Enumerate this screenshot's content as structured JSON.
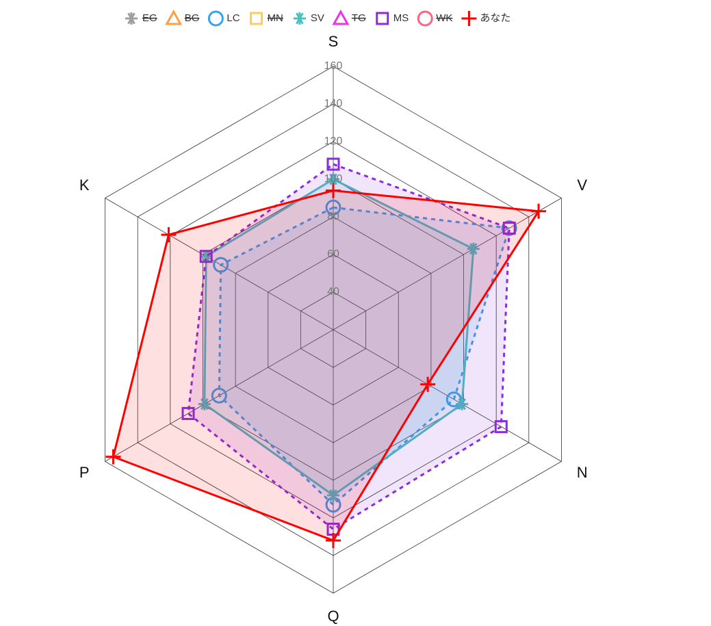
{
  "chart_data": {
    "type": "radar",
    "categories": [
      "S",
      "V",
      "N",
      "Q",
      "P",
      "K"
    ],
    "ylim": [
      20,
      160
    ],
    "yticks": [
      40,
      60,
      80,
      100,
      120,
      140,
      160
    ],
    "series": [
      {
        "name": "EG",
        "color": "#9e9e9e",
        "marker": "asterisk",
        "hidden": true
      },
      {
        "name": "BG",
        "color": "#ff9f40",
        "marker": "triangle",
        "hidden": true
      },
      {
        "name": "LC",
        "color": "#36a2eb",
        "marker": "circle",
        "dash": true,
        "values": [
          85,
          128,
          94,
          113,
          90,
          89
        ]
      },
      {
        "name": "MN",
        "color": "#ffcd56",
        "marker": "square",
        "hidden": true
      },
      {
        "name": "SV",
        "color": "#4bc0c0",
        "marker": "asterisk",
        "values": [
          100,
          106,
          99,
          108,
          99,
          98
        ]
      },
      {
        "name": "TG",
        "color": "#f032e6",
        "marker": "triangle",
        "hidden": true
      },
      {
        "name": "MS",
        "color": "#8a2be2",
        "marker": "square",
        "dash": true,
        "values": [
          108,
          128,
          123,
          126,
          109,
          98
        ]
      },
      {
        "name": "WK",
        "color": "#ff6384",
        "marker": "circle",
        "hidden": true
      },
      {
        "name": "あなた",
        "color": "#ff0000",
        "marker": "plus",
        "values": [
          94,
          146,
          78,
          132,
          155,
          121
        ]
      }
    ]
  }
}
